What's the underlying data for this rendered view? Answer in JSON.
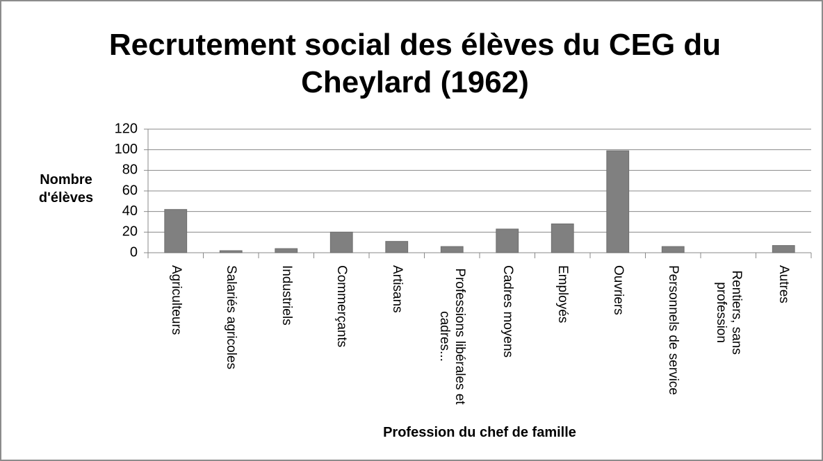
{
  "chart_data": {
    "type": "bar",
    "title": "Recrutement social des élèves du CEG du Cheylard (1962)",
    "x_label": "Profession du chef de famille",
    "y_label": "Nombre d'élèves",
    "categories": [
      "Agriculteurs",
      "Salariés agricoles",
      "Industriels",
      "Commerçants",
      "Artisans",
      "Professions libérales et cadres...",
      "Cadres moyens",
      "Employés",
      "Ouvriers",
      "Personnels de service",
      "Rentiers, sans profession",
      "Autres"
    ],
    "values": [
      42,
      2,
      4,
      20,
      11,
      6,
      23,
      28,
      99,
      6,
      0,
      7
    ],
    "color": "#808080",
    "ylim": [
      0,
      120
    ],
    "yticks": [
      0,
      20,
      40,
      60,
      80,
      100,
      120
    ],
    "grid": true
  }
}
